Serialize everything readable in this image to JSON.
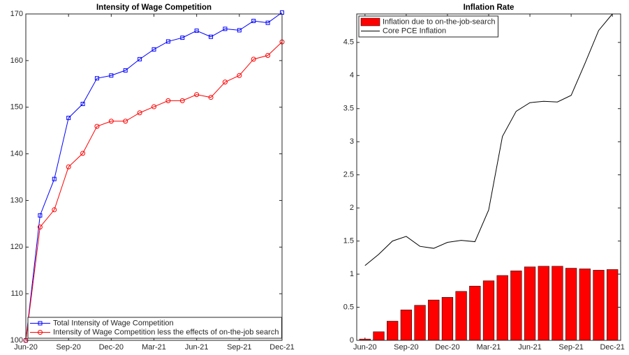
{
  "chart_data": [
    {
      "type": "line",
      "title": "Intensity of Wage Competition",
      "categories": [
        "Jun-20",
        null,
        null,
        "Sep-20",
        null,
        null,
        "Dec-20",
        null,
        null,
        "Mar-21",
        null,
        null,
        "Jun-21",
        null,
        null,
        "Sep-21",
        null,
        null,
        "Dec-21"
      ],
      "series": [
        {
          "name": "Total Intensity of Wage Competition",
          "color": "#0000ff",
          "marker": "square",
          "values": [
            100,
            126.8,
            134.6,
            147.7,
            150.7,
            156.2,
            156.8,
            157.9,
            160.3,
            162.4,
            164.1,
            164.9,
            166.4,
            165.1,
            166.8,
            166.5,
            168.5,
            168.1,
            170.3
          ]
        },
        {
          "name": "Intensity of Wage Competition less the effects of on-the-job search",
          "color": "#ff0000",
          "marker": "circle",
          "values": [
            100,
            124.3,
            128.0,
            137.2,
            140.1,
            145.9,
            147.0,
            147.0,
            148.8,
            150.1,
            151.4,
            151.4,
            152.7,
            152.1,
            155.4,
            156.8,
            160.3,
            161.1,
            164.0
          ]
        }
      ],
      "ylim": [
        100,
        170
      ],
      "yticks": [
        100,
        110,
        120,
        130,
        140,
        150,
        160,
        170
      ],
      "legend": "lower left"
    },
    {
      "type": "bar",
      "title": "Inflation Rate",
      "categories": [
        "Jun-20",
        null,
        null,
        "Sep-20",
        null,
        null,
        "Dec-20",
        null,
        null,
        "Mar-21",
        null,
        null,
        "Jun-21",
        null,
        null,
        "Sep-21",
        null,
        null,
        "Dec-21"
      ],
      "series": [
        {
          "name": "Inflation due to on-the-job-search",
          "color": "#ff0000",
          "type": "bar",
          "values": [
            0.02,
            0.13,
            0.29,
            0.46,
            0.53,
            0.61,
            0.65,
            0.74,
            0.82,
            0.9,
            0.98,
            1.05,
            1.11,
            1.12,
            1.12,
            1.09,
            1.08,
            1.06,
            1.07
          ]
        },
        {
          "name": "Core PCE Inflation",
          "color": "#000000",
          "type": "line",
          "values": [
            1.13,
            1.3,
            1.5,
            1.57,
            1.42,
            1.39,
            1.48,
            1.51,
            1.49,
            1.97,
            3.08,
            3.46,
            3.59,
            3.61,
            3.6,
            3.7,
            4.18,
            4.68,
            4.93
          ]
        }
      ],
      "ylim": [
        0,
        4.93
      ],
      "yticks": [
        0,
        0.5,
        1,
        1.5,
        2,
        2.5,
        3,
        3.5,
        4,
        4.5
      ],
      "legend": "upper left"
    }
  ]
}
